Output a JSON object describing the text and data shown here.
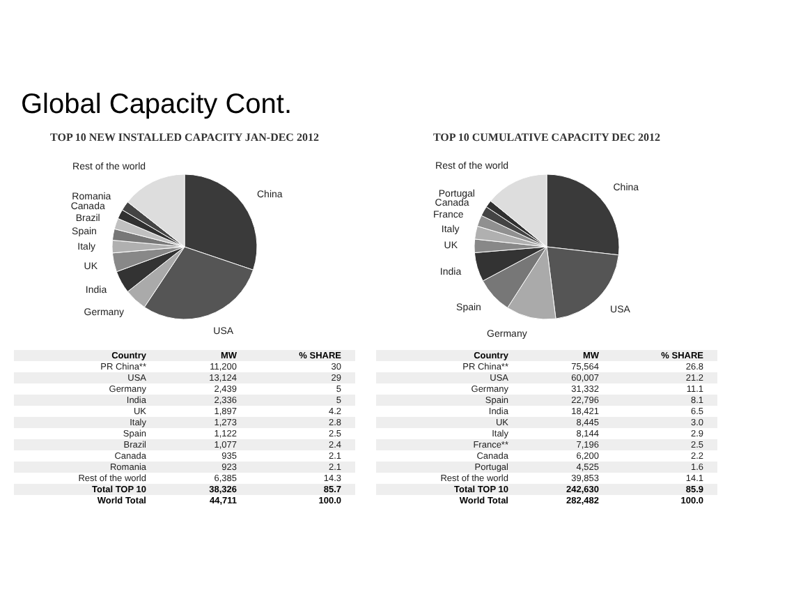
{
  "chart_data": [
    {
      "type": "other",
      "title": "Global Capacity Cont."
    },
    {
      "type": "pie",
      "title": "TOP 10 NEW INSTALLED CAPACITY JAN-DEC 2012",
      "categories": [
        "China",
        "USA",
        "Germany",
        "India",
        "UK",
        "Italy",
        "Spain",
        "Brazil",
        "Canada",
        "Romania",
        "Rest of the world"
      ],
      "values": [
        30,
        29,
        5,
        5,
        4.2,
        2.8,
        2.5,
        2.4,
        2.1,
        2.1,
        14.3
      ],
      "colors": [
        "#3a3a3a",
        "#555555",
        "#aaaaaa",
        "#333333",
        "#888888",
        "#b0b0b0",
        "#777777",
        "#c0c0c0",
        "#303030",
        "#444444",
        "#dddddd"
      ],
      "annotations": [
        "Country",
        "MW",
        "% SHARE",
        "PR China**",
        "USA",
        "Germany",
        "India",
        "UK",
        "Italy",
        "Spain",
        "Brazil",
        "Canada",
        "Romania",
        "Rest of the world",
        "11,200",
        "13,124",
        "2,439",
        "2,336",
        "1,897",
        "1,273",
        "1,122",
        "1,077",
        "935",
        "923",
        "6,385",
        "30",
        "29",
        "5",
        "5",
        "4.2",
        "2.8",
        "2.5",
        "2.4",
        "2.1",
        "2.1",
        "14.3",
        "Total TOP 10",
        "38,326",
        "85.7",
        "World Total",
        "44,711",
        "100.0"
      ]
    },
    {
      "type": "pie",
      "title": "TOP 10 CUMULATIVE CAPACITY DEC 2012",
      "categories": [
        "China",
        "USA",
        "Germany",
        "Spain",
        "India",
        "UK",
        "Italy",
        "France",
        "Canada",
        "Portugal",
        "Rest of the world"
      ],
      "values": [
        26.8,
        21.2,
        11.1,
        8.1,
        6.5,
        3.0,
        2.9,
        2.5,
        2.2,
        1.6,
        14.1
      ],
      "colors": [
        "#3a3a3a",
        "#555555",
        "#aaaaaa",
        "#777777",
        "#333333",
        "#888888",
        "#b0b0b0",
        "#909090",
        "#444444",
        "#303030",
        "#dddddd"
      ],
      "annotations": [
        "Country",
        "MW",
        "% SHARE",
        "PR China**",
        "USA",
        "Germany",
        "Spain",
        "India",
        "UK",
        "Italy",
        "France**",
        "Canada",
        "Portugal",
        "Rest of the world",
        "75,564",
        "60,007",
        "31,332",
        "22,796",
        "18,421",
        "8,445",
        "8,144",
        "7,196",
        "6,200",
        "4,525",
        "39,853",
        "26.8",
        "21.2",
        "11.1",
        "8.1",
        "6.5",
        "3.0",
        "2.9",
        "2.5",
        "2.2",
        "1.6",
        "14.1",
        "Total TOP 10",
        "242,630",
        "85.9",
        "World Total",
        "282,482",
        "100.0"
      ]
    }
  ]
}
